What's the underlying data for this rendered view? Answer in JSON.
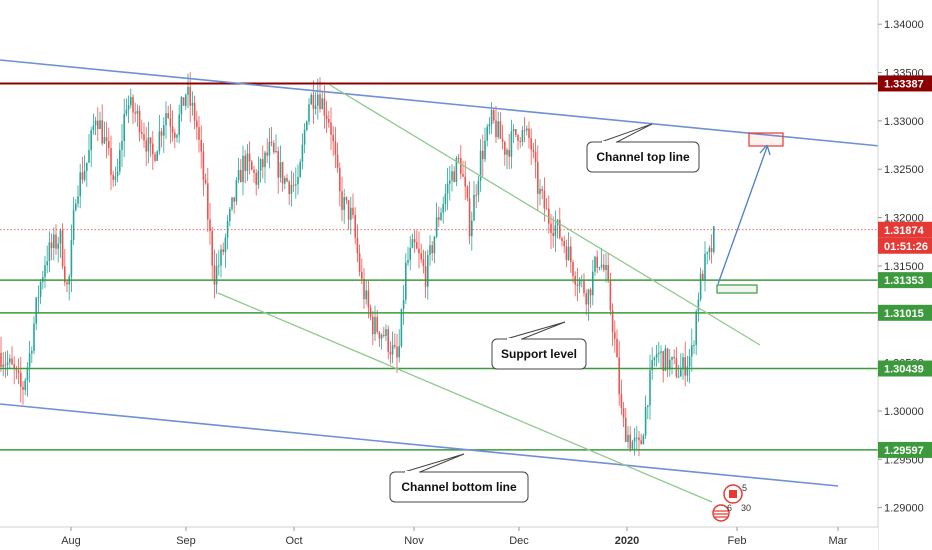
{
  "chart_data": {
    "type": "candlestick",
    "x_axis": {
      "labels": [
        "Aug",
        "Sep",
        "Oct",
        "Nov",
        "Dec",
        "2020",
        "Feb",
        "Mar"
      ],
      "bold_label": "2020"
    },
    "y_axis": {
      "range": [
        1.288,
        1.3425
      ],
      "ticks": [
        "1.34000",
        "1.33500",
        "1.33000",
        "1.32500",
        "1.32000",
        "1.31500",
        "1.31000",
        "1.30500",
        "1.30000",
        "1.29500",
        "1.29000"
      ]
    },
    "current_price": {
      "value": "1.31874",
      "countdown": "01:51:26",
      "color": "#e53935"
    },
    "horizontal_levels": [
      {
        "value": "1.33387",
        "color": "#8b0000"
      },
      {
        "value": "1.31353",
        "color": "#3c9a3c"
      },
      {
        "value": "1.31015",
        "color": "#3c9a3c"
      },
      {
        "value": "1.30439",
        "color": "#3c9a3c"
      },
      {
        "value": "1.29597",
        "color": "#3c9a3c"
      }
    ],
    "annotations": [
      {
        "text": "Channel top line"
      },
      {
        "text": "Support level"
      },
      {
        "text": "Channel bottom line"
      }
    ],
    "event_badges": [
      {
        "value": "5"
      },
      {
        "value": "6"
      },
      {
        "value": "30"
      }
    ],
    "colors": {
      "up_candle": "#26a69a",
      "down_candle": "#ef5350",
      "channel_line": "#6f8fd6",
      "trend_line": "#8fc98f",
      "forecast_arrow": "#4a7fc4"
    }
  }
}
